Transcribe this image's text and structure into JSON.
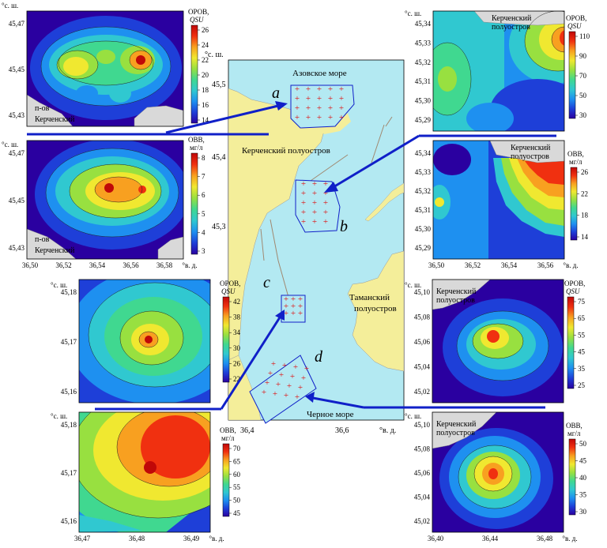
{
  "central_map": {
    "labels": {
      "azov": "Азовское море",
      "kerch_pen": "Керченский полуостров",
      "taman_pen": "Таманский полуостров",
      "black_sea": "Черное море"
    },
    "lat_axis": {
      "unit": "°с. ш.",
      "ticks": [
        "45,5",
        "45,4",
        "45,3"
      ]
    },
    "lon_axis": {
      "unit": "°в. д.",
      "ticks": [
        "36,4",
        "36,6"
      ]
    },
    "area_letters": [
      "a",
      "b",
      "c",
      "d"
    ]
  },
  "colors": {
    "sea": "#b3e9f2",
    "land": "#f4ee9a",
    "land_map": "#d9d9d9",
    "arrow": "#1020c8",
    "grid_marker": "#e01010",
    "cb_stops": [
      "#2a00a0",
      "#1e3fd8",
      "#1e90f0",
      "#30c8d0",
      "#40d890",
      "#98e040",
      "#f0e830",
      "#f8a020",
      "#f03010",
      "#c00808"
    ]
  },
  "panels": [
    {
      "id": "a-orov",
      "title_line1": "ОРОВ,",
      "title_line2": "QSU",
      "cb_ticks": [
        "26",
        "24",
        "22",
        "20",
        "18",
        "16",
        "14"
      ],
      "lat_unit": "°с. ш.",
      "lat_ticks": [
        "45,47",
        "45,45",
        "45,43"
      ],
      "lon_ticks": [],
      "lon_unit": "",
      "land_labels": [
        "п-ов",
        "Керченский"
      ]
    },
    {
      "id": "a-ovv",
      "title_line1": "ОВВ,",
      "title_line2": "мг/л",
      "cb_ticks": [
        "8",
        "7",
        "6",
        "5",
        "4",
        "3"
      ],
      "lat_unit": "°с. ш.",
      "lat_ticks": [
        "45,47",
        "45,45",
        "45,43"
      ],
      "lon_ticks": [
        "36,50",
        "36,52",
        "36,54",
        "36,56",
        "36,58"
      ],
      "lon_unit": "°в. д.",
      "land_labels": [
        "п-ов",
        "Керченский"
      ]
    },
    {
      "id": "b-orov",
      "title_line1": "ОРОВ,",
      "title_line2": "QSU",
      "cb_ticks": [
        "110",
        "90",
        "70",
        "50",
        "30"
      ],
      "lat_unit": "°с. ш.",
      "lat_ticks": [
        "45,34",
        "45,33",
        "45,32",
        "45,31",
        "45,30",
        "45,29"
      ],
      "lon_ticks": [],
      "lon_unit": "",
      "land_labels": [
        "Керченский",
        "полуостров"
      ]
    },
    {
      "id": "b-ovv",
      "title_line1": "ОВВ,",
      "title_line2": "мг/л",
      "cb_ticks": [
        "26",
        "22",
        "18",
        "14"
      ],
      "lat_unit": "",
      "lat_ticks": [
        "45,34",
        "45,33",
        "45,32",
        "45,31",
        "45,30",
        "45,29"
      ],
      "lon_ticks": [
        "36,50",
        "36,52",
        "36,54",
        "36,56"
      ],
      "lon_unit": "°в. д.",
      "land_labels": [
        "Керченский",
        "полуостров"
      ]
    },
    {
      "id": "c-orov",
      "title_line1": "ОРОВ,",
      "title_line2": "QSU",
      "cb_ticks": [
        "42",
        "38",
        "34",
        "30",
        "26",
        "22"
      ],
      "lat_unit": "°с. ш.",
      "lat_ticks": [
        "45,18",
        "45,17",
        "45,16"
      ],
      "lon_ticks": [],
      "lon_unit": "",
      "land_labels": []
    },
    {
      "id": "c-ovv",
      "title_line1": "ОВВ,",
      "title_line2": "мг/л",
      "cb_ticks": [
        "70",
        "65",
        "60",
        "55",
        "50",
        "45"
      ],
      "lat_unit": "°с. ш.",
      "lat_ticks": [
        "45,18",
        "45,17",
        "45,16"
      ],
      "lon_ticks": [
        "36,47",
        "36,48",
        "36,49"
      ],
      "lon_unit": "°в. д.",
      "land_labels": []
    },
    {
      "id": "d-orov",
      "title_line1": "ОРОВ,",
      "title_line2": "QSU",
      "cb_ticks": [
        "75",
        "65",
        "55",
        "45",
        "35",
        "25"
      ],
      "lat_unit": "°с. ш.",
      "lat_ticks": [
        "45,10",
        "45,08",
        "45,06",
        "45,04",
        "45,02"
      ],
      "lon_ticks": [],
      "lon_unit": "",
      "land_labels": [
        "Керченский",
        "полуостров"
      ]
    },
    {
      "id": "d-ovv",
      "title_line1": "ОВВ,",
      "title_line2": "мг/л",
      "cb_ticks": [
        "50",
        "45",
        "40",
        "35",
        "30"
      ],
      "lat_unit": "°с. ш.",
      "lat_ticks": [
        "45,10",
        "45,08",
        "45,06",
        "45,04",
        "45,02"
      ],
      "lon_ticks": [
        "36,40",
        "36,44",
        "36,48"
      ],
      "lon_unit": "°в. д.",
      "land_labels": [
        "Керченский",
        "полуостров"
      ]
    }
  ]
}
